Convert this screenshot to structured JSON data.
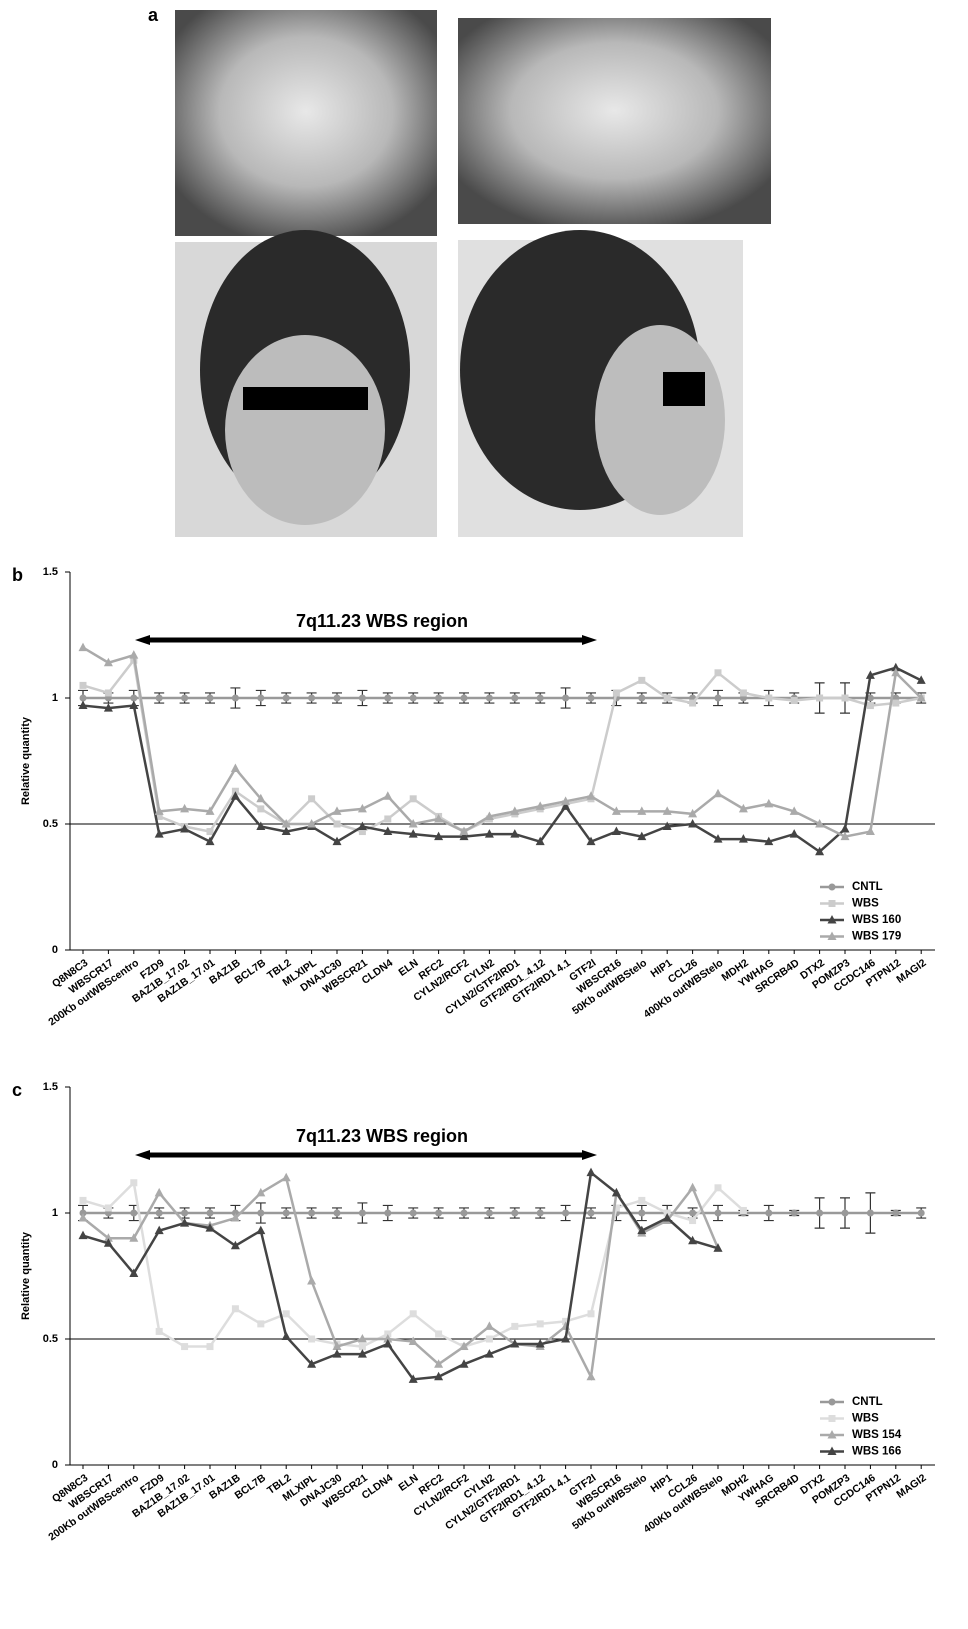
{
  "figure_labels": [
    "a",
    "b",
    "c"
  ],
  "chart_data": [
    {
      "type": "line",
      "annotation": "7q11.23 WBS region",
      "ylabel": "Relative quantity",
      "categories": [
        "Q8N8C3",
        "WBSCR17",
        "200Kb outWBScentro",
        "FZD9",
        "BAZ1B_17.02",
        "BAZ1B_17.01",
        "BAZ1B",
        "BCL7B",
        "TBL2",
        "MLXIPL",
        "DNAJC30",
        "WBSCR21",
        "CLDN4",
        "ELN",
        "RFC2",
        "CYLN2/RCF2",
        "CYLN2",
        "CYLN2/GTF2IRD1",
        "GTF2IRD1_4.12",
        "GTF2IRD1 4.1",
        "GTF2I",
        "WBSCR16",
        "50Kb outWBStelo",
        "HIP1",
        "CCL26",
        "400Kb outWBStelo",
        "MDH2",
        "YWHAG",
        "SRCRB4D",
        "DTX2",
        "POMZP3",
        "CCDC146",
        "PTPN12",
        "MAGI2"
      ],
      "ylim": [
        0,
        1.5
      ],
      "yticks": [
        0,
        0.5,
        1,
        1.5
      ],
      "reference_line": 0.5,
      "legend": "lower right",
      "series": [
        {
          "name": "CNTL",
          "color": "#999999",
          "marker": "circle",
          "values": [
            1,
            1,
            1,
            1,
            1,
            1,
            1,
            1,
            1,
            1,
            1,
            1,
            1,
            1,
            1,
            1,
            1,
            1,
            1,
            1,
            1,
            1,
            1,
            1,
            1,
            1,
            1,
            1,
            1,
            1,
            1,
            1,
            1,
            1
          ],
          "errors": [
            0.03,
            0.02,
            0.03,
            0.02,
            0.02,
            0.02,
            0.04,
            0.03,
            0.02,
            0.02,
            0.02,
            0.03,
            0.02,
            0.02,
            0.02,
            0.02,
            0.02,
            0.02,
            0.02,
            0.04,
            0.02,
            0.03,
            0.02,
            0.02,
            0.02,
            0.03,
            0.02,
            0.03,
            0.02,
            0.06,
            0.06,
            0.02,
            0.02,
            0.02
          ]
        },
        {
          "name": "WBS",
          "color": "#cccccc",
          "marker": "square",
          "values": [
            1.05,
            1.02,
            1.15,
            0.53,
            0.49,
            0.47,
            0.63,
            0.56,
            0.5,
            0.6,
            0.5,
            0.47,
            0.52,
            0.6,
            0.53,
            0.47,
            0.52,
            0.54,
            0.56,
            0.58,
            0.6,
            1.02,
            1.07,
            1.0,
            0.98,
            1.1,
            1.02,
            1.0,
            0.99,
            1.0,
            1.0,
            0.97,
            0.98,
            1.0
          ]
        },
        {
          "name": "WBS 160",
          "color": "#444444",
          "marker": "triangle",
          "values": [
            0.97,
            0.96,
            0.97,
            0.46,
            0.48,
            0.43,
            0.61,
            0.49,
            0.47,
            0.49,
            0.43,
            0.49,
            0.47,
            0.46,
            0.45,
            0.45,
            0.46,
            0.46,
            0.43,
            0.57,
            0.43,
            0.47,
            0.45,
            0.49,
            0.5,
            0.44,
            0.44,
            0.43,
            0.46,
            0.39,
            0.48,
            1.09,
            1.12,
            1.07
          ]
        },
        {
          "name": "WBS 179",
          "color": "#aaaaaa",
          "marker": "triangle",
          "values": [
            1.2,
            1.14,
            1.17,
            0.55,
            0.56,
            0.55,
            0.72,
            0.6,
            0.5,
            0.5,
            0.55,
            0.56,
            0.61,
            0.5,
            0.52,
            0.47,
            0.53,
            0.55,
            0.57,
            0.59,
            0.61,
            0.55,
            0.55,
            0.55,
            0.54,
            0.62,
            0.56,
            0.58,
            0.55,
            0.5,
            0.45,
            0.47,
            1.1,
            1.0
          ]
        }
      ]
    },
    {
      "type": "line",
      "annotation": "7q11.23 WBS region",
      "ylabel": "Relative quantity",
      "categories": [
        "Q8N8C3",
        "WBSCR17",
        "200Kb outWBScentro",
        "FZD9",
        "BAZ1B_17.02",
        "BAZ1B_17.01",
        "BAZ1B",
        "BCL7B",
        "TBL2",
        "MLXIPL",
        "DNAJC30",
        "WBSCR21",
        "CLDN4",
        "ELN",
        "RFC2",
        "CYLN2/RCF2",
        "CYLN2",
        "CYLN2/GTF2IRD1",
        "GTF2IRD1_4.12",
        "GTF2IRD1 4.1",
        "GTF2I",
        "WBSCR16",
        "50Kb outWBStelo",
        "HIP1",
        "CCL26",
        "400Kb outWBStelo",
        "MDH2",
        "YWHAG",
        "SRCRB4D",
        "DTX2",
        "POMZP3",
        "CCDC146",
        "PTPN12",
        "MAGI2"
      ],
      "ylim": [
        0,
        1.5
      ],
      "yticks": [
        0,
        0.5,
        1,
        1.5
      ],
      "reference_line": 0.5,
      "legend": "lower right",
      "series": [
        {
          "name": "CNTL",
          "color": "#999999",
          "marker": "circle",
          "values": [
            1,
            1,
            1,
            1,
            1,
            1,
            1,
            1,
            1,
            1,
            1,
            1,
            1,
            1,
            1,
            1,
            1,
            1,
            1,
            1,
            1,
            1,
            1,
            1,
            1,
            1,
            1,
            1,
            1,
            1,
            1,
            1,
            1,
            1
          ],
          "errors": [
            0.03,
            0.02,
            0.03,
            0.02,
            0.02,
            0.02,
            0.03,
            0.04,
            0.02,
            0.02,
            0.02,
            0.04,
            0.03,
            0.02,
            0.02,
            0.02,
            0.02,
            0.02,
            0.02,
            0.03,
            0.02,
            0.03,
            0.03,
            0.03,
            0.02,
            0.03,
            0.01,
            0.03,
            0.01,
            0.06,
            0.06,
            0.08,
            0.01,
            0.02
          ]
        },
        {
          "name": "WBS",
          "color": "#dddddd",
          "marker": "square",
          "values": [
            1.05,
            1.02,
            1.12,
            0.53,
            0.47,
            0.47,
            0.62,
            0.56,
            0.6,
            0.5,
            0.48,
            0.47,
            0.52,
            0.6,
            0.52,
            0.47,
            0.5,
            0.55,
            0.56,
            0.57,
            0.6,
            1.02,
            1.05,
            1.0,
            0.97,
            1.1,
            1.01,
            null,
            null,
            null,
            null,
            null,
            null,
            null
          ]
        },
        {
          "name": "WBS 154",
          "color": "#aaaaaa",
          "marker": "triangle",
          "values": [
            0.98,
            0.9,
            0.9,
            1.08,
            0.96,
            0.95,
            0.98,
            1.08,
            1.14,
            0.73,
            0.47,
            0.5,
            0.5,
            0.49,
            0.4,
            0.47,
            0.55,
            0.48,
            0.47,
            0.55,
            0.35,
            1.08,
            0.92,
            0.97,
            1.1,
            0.86,
            null,
            null,
            null,
            null,
            null,
            null,
            null,
            null
          ]
        },
        {
          "name": "WBS 166",
          "color": "#444444",
          "marker": "triangle",
          "values": [
            0.91,
            0.88,
            0.76,
            0.93,
            0.96,
            0.94,
            0.87,
            0.93,
            0.51,
            0.4,
            0.44,
            0.44,
            0.48,
            0.34,
            0.35,
            0.4,
            0.44,
            0.48,
            0.48,
            0.5,
            1.16,
            1.08,
            0.93,
            0.98,
            0.89,
            0.86,
            null,
            null,
            null,
            null,
            null,
            null,
            null,
            null
          ]
        }
      ]
    }
  ]
}
